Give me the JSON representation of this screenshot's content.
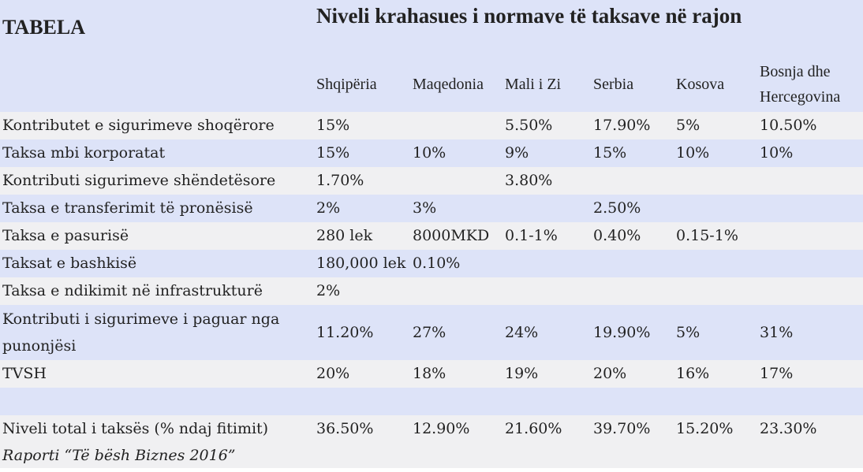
{
  "table_label": "TABELA",
  "title": "Niveli krahasues i normave të taksave në rajon",
  "countries": [
    "Shqipëria",
    "Maqedonia",
    "Mali i Zi",
    "Serbia",
    "Kosova",
    "Bosnja dhe Hercegovina"
  ],
  "rows": [
    {
      "label": "Kontributet e sigurimeve shoqërore",
      "values": [
        "15%",
        "",
        "5.50%",
        "17.90%",
        "5%",
        "10.50%"
      ]
    },
    {
      "label": "Taksa mbi korporatat",
      "values": [
        "15%",
        "10%",
        "9%",
        "15%",
        "10%",
        "10%"
      ]
    },
    {
      "label": "Kontributi sigurimeve shëndetësore",
      "values": [
        "1.70%",
        "",
        "3.80%",
        "",
        "",
        ""
      ]
    },
    {
      "label": "Taksa e transferimit të pronësisë",
      "values": [
        "2%",
        "3%",
        "",
        "2.50%",
        "",
        ""
      ]
    },
    {
      "label": "Taksa e pasurisë",
      "values": [
        "280 lek",
        "8000MKD",
        "0.1-1%",
        "0.40%",
        "0.15-1%",
        ""
      ]
    },
    {
      "label": "Taksat e bashkisë",
      "values": [
        "180,000 lek",
        "0.10%",
        "",
        "",
        "",
        ""
      ]
    },
    {
      "label": "Taksa e ndikimit në infrastrukturë",
      "values": [
        "2%",
        "",
        "",
        "",
        "",
        ""
      ]
    },
    {
      "label": "Kontributi i sigurimeve i paguar nga punonjësi",
      "values": [
        "11.20%",
        "27%",
        "24%",
        "19.90%",
        "5%",
        "31%"
      ]
    },
    {
      "label": "TVSH",
      "values": [
        "20%",
        "18%",
        "19%",
        "20%",
        "16%",
        "17%"
      ]
    },
    {
      "label": "",
      "values": [
        "",
        "",
        "",
        "",
        "",
        ""
      ]
    }
  ],
  "total_row": {
    "label": "Niveli total i taksës (% ndaj fitimit)",
    "values": [
      "36.50%",
      "12.90%",
      "21.60%",
      "39.70%",
      "15.20%",
      "23.30%"
    ]
  },
  "source_note": "Raporti “Të bësh Biznes 2016”"
}
